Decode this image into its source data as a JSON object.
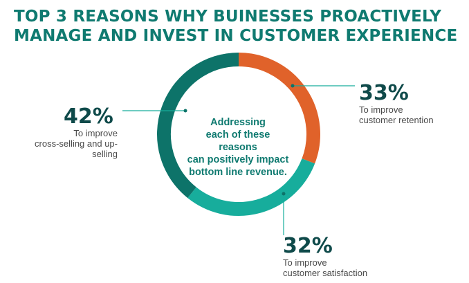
{
  "chart_data": {
    "type": "pie",
    "title_lines": [
      "TOP 3 REASONS WHY BUINESSES PROACTIVELY",
      "MANAGE AND INVEST IN CUSTOMER EXPERIENCE"
    ],
    "center_text": [
      "Addressing",
      "each of these reasons",
      "can positively impact",
      "bottom line revenue."
    ],
    "slices": [
      {
        "value_label": "33%",
        "value": 33,
        "desc": [
          "To improve",
          "customer retention"
        ],
        "color": "#e0622a"
      },
      {
        "value_label": "32%",
        "value": 32,
        "desc": [
          "To improve",
          "customer satisfaction"
        ],
        "color": "#17ad9c"
      },
      {
        "value_label": "42%",
        "value": 42,
        "desc": [
          "To improve",
          "cross-selling and up-selling"
        ],
        "color": "#0d7369"
      }
    ],
    "leader_line_color": "#17ad9c"
  }
}
